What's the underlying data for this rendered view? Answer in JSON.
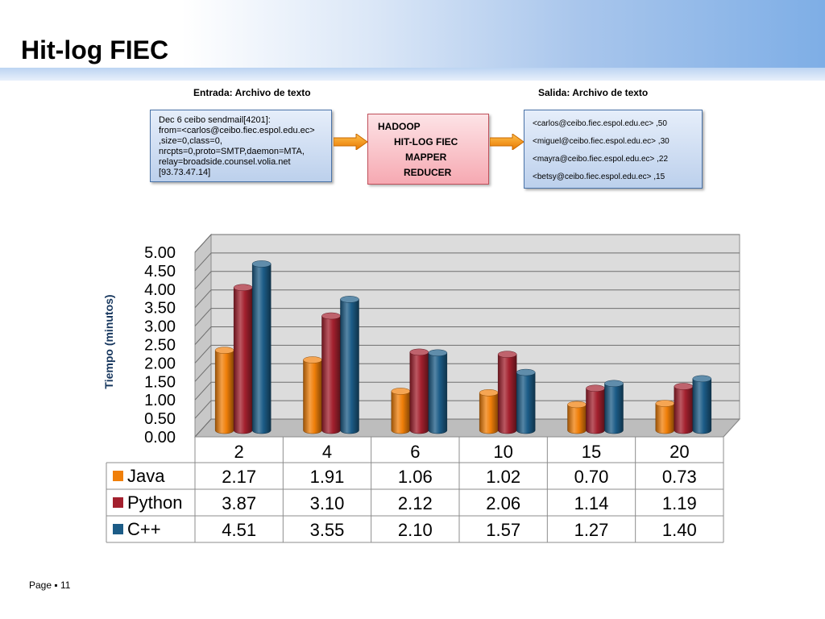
{
  "slide": {
    "title": "Hit-log FIEC",
    "footer": "Page ▪ 11"
  },
  "diagram": {
    "input_caption": "Entrada: Archivo de texto",
    "output_caption": "Salida: Archivo de texto",
    "input_lines": [
      "Dec  6 ceibo  sendmail[4201]:",
      "from=<carlos@ceibo.fiec.espol.edu.ec>",
      ",size=0,class=0,",
      "nrcpts=0,proto=SMTP,daemon=MTA,",
      "relay=broadside.counsel.volia.net",
      "[93.73.47.14]"
    ],
    "process_lines": [
      "HADOOP",
      "HIT-LOG FIEC",
      "MAPPER",
      "REDUCER"
    ],
    "output_lines": [
      "<carlos@ceibo.fiec.espol.edu.ec> ,50",
      "<miguel@ceibo.fiec.espol.edu.ec>  ,30",
      "<mayra@ceibo.fiec.espol.edu.ec> ,22",
      "<betsy@ceibo.fiec.espol.edu.ec> ,15"
    ]
  },
  "chart_data": {
    "type": "bar",
    "style": "3d-cylinder-with-data-table",
    "ylabel": "Tiempo (minutos)",
    "ylim": [
      0,
      5
    ],
    "ytick_step": 0.5,
    "ytick_labels": [
      "0.00",
      "0.50",
      "1.00",
      "1.50",
      "2.00",
      "2.50",
      "3.00",
      "3.50",
      "4.00",
      "4.50",
      "5.00"
    ],
    "grid": true,
    "categories": [
      "2",
      "4",
      "6",
      "10",
      "15",
      "20"
    ],
    "series": [
      {
        "name": "Java",
        "color": "#f07f09",
        "values": [
          2.17,
          1.91,
          1.06,
          1.02,
          0.7,
          0.73
        ],
        "labels": [
          "2.17",
          "1.91",
          "1.06",
          "1.02",
          "0.70",
          "0.73"
        ]
      },
      {
        "name": "Python",
        "color": "#a3202e",
        "values": [
          3.87,
          3.1,
          2.12,
          2.06,
          1.14,
          1.19
        ],
        "labels": [
          "3.87",
          "3.10",
          "2.12",
          "2.06",
          "1.14",
          "1.19"
        ]
      },
      {
        "name": "C++",
        "color": "#1c5c87",
        "values": [
          4.51,
          3.55,
          2.1,
          1.57,
          1.27,
          1.4
        ],
        "labels": [
          "4.51",
          "3.55",
          "2.10",
          "1.57",
          "1.27",
          "1.40"
        ]
      }
    ]
  }
}
